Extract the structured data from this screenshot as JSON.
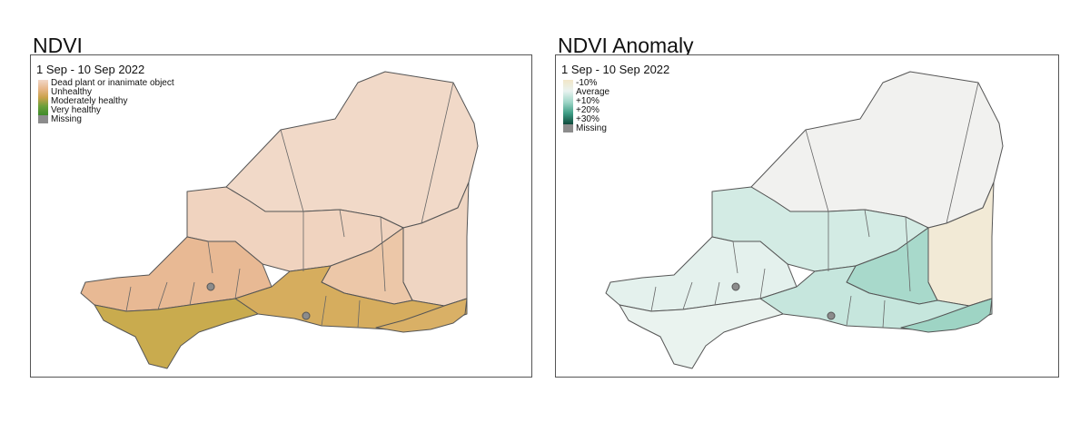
{
  "panels": [
    {
      "title": "NDVI",
      "date": "1 Sep - 10 Sep 2022",
      "legend_items": [
        "Dead plant or inanimate object",
        "Unhealthy",
        "Moderately healthy",
        "Very healthy"
      ],
      "legend_gradient": [
        "#f2d8c8",
        "#e8b78a",
        "#c9a24a",
        "#6aa03a",
        "#3f8a2a"
      ],
      "missing_label": "Missing",
      "missing_color": "#8c8c8c",
      "region_colors": {
        "north": "#f1d9c8",
        "east": "#efd5c2",
        "northwest": "#f0d3bf",
        "central": "#ecc7a8",
        "southwest": "#e8b994",
        "south": "#d6ad5e",
        "southeast": "#d9b066",
        "far_southwest": "#c9ab4e"
      }
    },
    {
      "title": "NDVI Anomaly",
      "date": "1 Sep - 10 Sep 2022",
      "legend_items": [
        "-10%",
        "Average",
        "+10%",
        "+20%",
        "+30%"
      ],
      "legend_gradient": [
        "#f2e6c8",
        "#e9f3f0",
        "#9fd6c8",
        "#3f9e86",
        "#0f4a3c"
      ],
      "missing_label": "Missing",
      "missing_color": "#8c8c8c",
      "region_colors": {
        "north": "#f1f1ef",
        "east": "#f2ead6",
        "northwest": "#d3ebe4",
        "central": "#a8d9cb",
        "southwest": "#e4f1ed",
        "south": "#c6e6dd",
        "southeast": "#9ed4c4",
        "far_southwest": "#eaf3ef"
      }
    }
  ]
}
